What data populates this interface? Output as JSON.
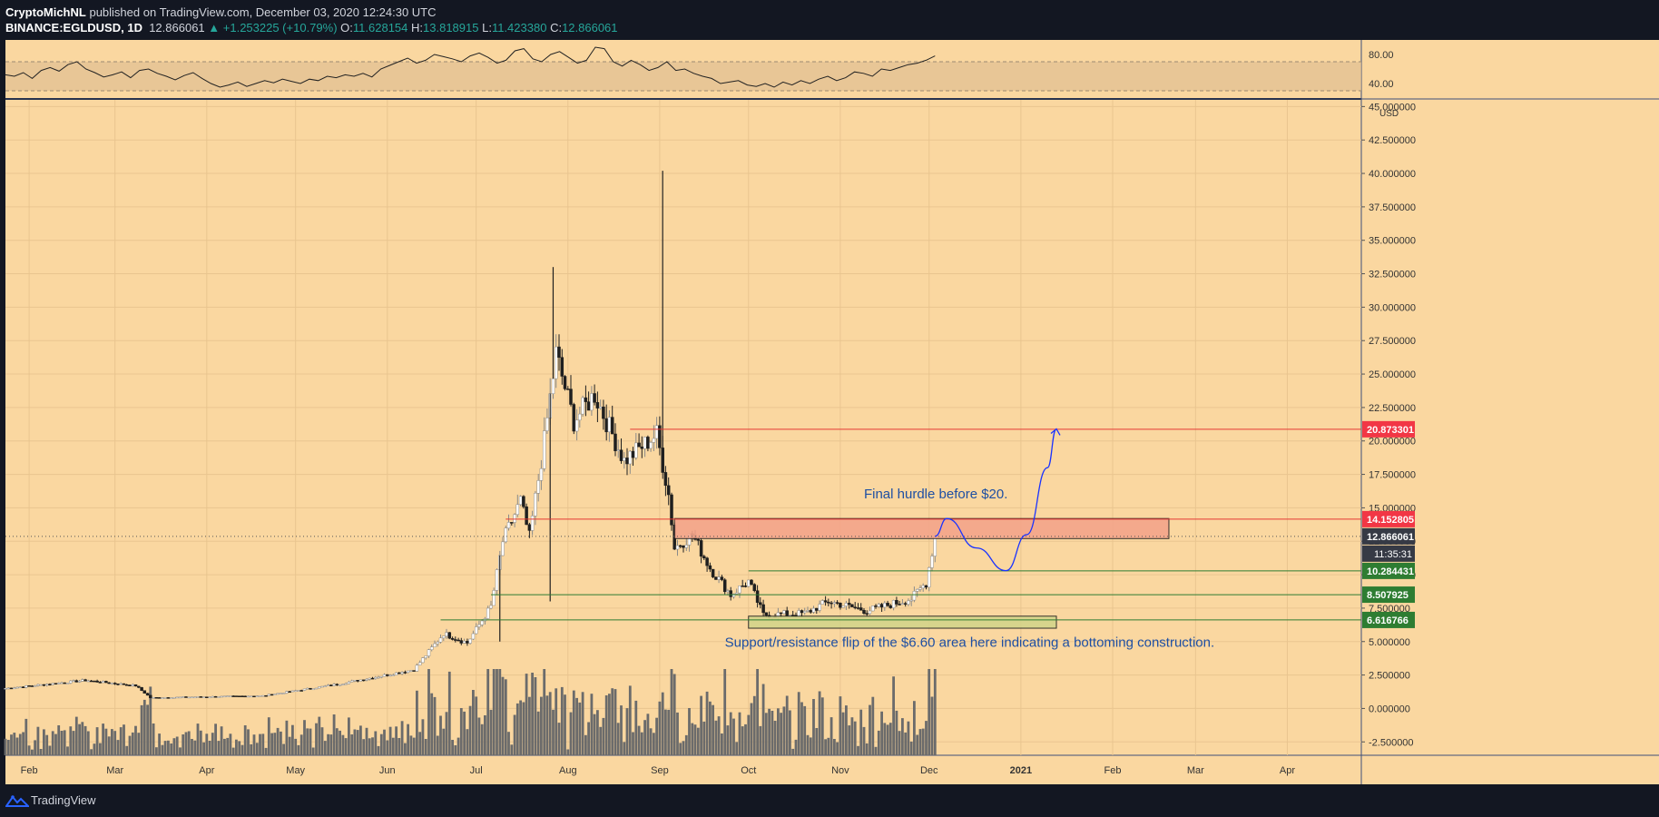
{
  "header": {
    "author": "CryptoMichNL",
    "published_text": "published on TradingView.com, December 03, 2020 12:24:30 UTC",
    "symbol": "BINANCE:EGLDUSD, 1D",
    "last": "12.866061",
    "change": "▲ +1.253225 (+10.79%)",
    "o_label": "O:",
    "o": "11.628154",
    "h_label": "H:",
    "h": "13.818915",
    "l_label": "L:",
    "l": "11.423380",
    "c_label": "C:",
    "c": "12.866061"
  },
  "footer": {
    "brand": "TradingView",
    "brand_icon": "tradingview-logo-icon"
  },
  "colors": {
    "background": "#fad7a0",
    "candle": "#1f1f1f",
    "grid": "#e9c58f",
    "resistance_line": "#e53935",
    "support_line": "#2e7d32",
    "annotation_text": "#1e4fa3",
    "arrow": "#1a33ff"
  },
  "chart_data": [
    {
      "type": "line",
      "name": "RSI pane",
      "y_ticks": [
        "80.00",
        "40.00"
      ],
      "ylim": [
        20,
        100
      ],
      "band": [
        30,
        70
      ],
      "x_range": [
        "2020-01-24",
        "2021-04-26"
      ],
      "values": [
        52,
        50,
        55,
        47,
        58,
        62,
        57,
        66,
        70,
        60,
        55,
        49,
        52,
        56,
        48,
        58,
        60,
        54,
        50,
        45,
        51,
        55,
        47,
        40,
        35,
        38,
        42,
        36,
        40,
        44,
        41,
        46,
        43,
        40,
        46,
        44,
        50,
        48,
        52,
        50,
        54,
        49,
        60,
        65,
        70,
        75,
        68,
        72,
        80,
        77,
        74,
        70,
        78,
        82,
        76,
        68,
        72,
        85,
        88,
        74,
        70,
        80,
        84,
        76,
        68,
        72,
        90,
        88,
        70,
        64,
        72,
        66,
        58,
        62,
        70,
        58,
        60,
        54,
        50,
        47,
        40,
        42,
        44,
        38,
        36,
        40,
        35,
        42,
        38,
        44,
        40,
        46,
        50,
        44,
        48,
        56,
        54,
        50,
        60,
        58,
        62,
        66,
        68,
        72,
        78
      ]
    },
    {
      "type": "candlestick",
      "name": "EGLDUSD 1D",
      "y_unit": "USD",
      "ylim": [
        -3.5,
        45.5
      ],
      "y_ticks": [
        "45.000000",
        "42.500000",
        "40.000000",
        "37.500000",
        "35.000000",
        "32.500000",
        "30.000000",
        "27.500000",
        "25.000000",
        "22.500000",
        "20.000000",
        "17.500000",
        "15.000000",
        "12.500000",
        "10.000000",
        "7.500000",
        "5.000000",
        "2.500000",
        "0.000000",
        "-2.500000"
      ],
      "x_range": [
        "2020-01-24",
        "2021-04-26"
      ],
      "x_ticks": [
        {
          "label": "Feb",
          "date": "2020-02-01",
          "bold": false
        },
        {
          "label": "Mar",
          "date": "2020-03-01",
          "bold": false
        },
        {
          "label": "Apr",
          "date": "2020-04-01",
          "bold": false
        },
        {
          "label": "May",
          "date": "2020-05-01",
          "bold": false
        },
        {
          "label": "Jun",
          "date": "2020-06-01",
          "bold": false
        },
        {
          "label": "Jul",
          "date": "2020-07-01",
          "bold": false
        },
        {
          "label": "Aug",
          "date": "2020-08-01",
          "bold": false
        },
        {
          "label": "Sep",
          "date": "2020-09-01",
          "bold": false
        },
        {
          "label": "Oct",
          "date": "2020-10-01",
          "bold": false
        },
        {
          "label": "Nov",
          "date": "2020-11-01",
          "bold": false
        },
        {
          "label": "Dec",
          "date": "2020-12-01",
          "bold": false
        },
        {
          "label": "2021",
          "date": "2021-01-01",
          "bold": true
        },
        {
          "label": "Feb",
          "date": "2021-02-01",
          "bold": false
        },
        {
          "label": "Mar",
          "date": "2021-03-01",
          "bold": false
        },
        {
          "label": "Apr",
          "date": "2021-04-01",
          "bold": false
        }
      ],
      "start_date": "2020-01-24",
      "close_path": [
        {
          "date": "2020-01-24",
          "close": 1.5
        },
        {
          "date": "2020-02-20",
          "close": 2.1
        },
        {
          "date": "2020-03-08",
          "close": 1.7
        },
        {
          "date": "2020-03-13",
          "close": 0.8
        },
        {
          "date": "2020-04-20",
          "close": 0.95
        },
        {
          "date": "2020-05-15",
          "close": 1.8
        },
        {
          "date": "2020-06-10",
          "close": 2.9
        },
        {
          "date": "2020-06-20",
          "close": 5.6
        },
        {
          "date": "2020-06-28",
          "close": 4.9
        },
        {
          "date": "2020-07-06",
          "close": 7.6
        },
        {
          "date": "2020-07-10",
          "close": 12.5
        },
        {
          "date": "2020-07-16",
          "close": 15.5
        },
        {
          "date": "2020-07-19",
          "close": 12.8
        },
        {
          "date": "2020-07-24",
          "close": 20.0
        },
        {
          "date": "2020-07-28",
          "close": 26.5
        },
        {
          "date": "2020-08-03",
          "close": 21.5
        },
        {
          "date": "2020-08-10",
          "close": 23.5
        },
        {
          "date": "2020-08-20",
          "close": 18.5
        },
        {
          "date": "2020-08-31",
          "close": 20.5
        },
        {
          "date": "2020-09-04",
          "close": 16.0
        },
        {
          "date": "2020-09-06",
          "close": 12.0
        },
        {
          "date": "2020-09-12",
          "close": 13.0
        },
        {
          "date": "2020-09-18",
          "close": 10.5
        },
        {
          "date": "2020-09-25",
          "close": 8.5
        },
        {
          "date": "2020-10-01",
          "close": 9.5
        },
        {
          "date": "2020-10-06",
          "close": 7.0
        },
        {
          "date": "2020-10-20",
          "close": 7.1
        },
        {
          "date": "2020-10-28",
          "close": 8.0
        },
        {
          "date": "2020-11-10",
          "close": 7.3
        },
        {
          "date": "2020-11-25",
          "close": 8.2
        },
        {
          "date": "2020-11-30",
          "close": 9.4
        },
        {
          "date": "2020-12-03",
          "close": 12.87
        }
      ],
      "spikes": [
        {
          "date": "2020-07-27",
          "high": 33.0
        },
        {
          "date": "2020-09-02",
          "high": 40.2
        },
        {
          "date": "2020-07-09",
          "low": 5.0
        },
        {
          "date": "2020-07-26",
          "low": 8.0
        }
      ],
      "horizontal_levels": [
        {
          "value": 20.873301,
          "label": "20.873301",
          "kind": "resistance",
          "from": "2020-08-22"
        },
        {
          "value": 14.152805,
          "label": "14.152805",
          "kind": "resistance",
          "from": "2020-07-11"
        },
        {
          "value": 12.866061,
          "label": "12.866061",
          "kind": "current-price",
          "from": "2020-01-24"
        },
        {
          "value": 10.284431,
          "label": "10.284431",
          "kind": "support",
          "from": "2020-10-01"
        },
        {
          "value": 8.507925,
          "label": "8.507925",
          "kind": "support",
          "from": "2020-07-06"
        },
        {
          "value": 6.616766,
          "label": "6.616766",
          "kind": "support",
          "from": "2020-06-19"
        }
      ],
      "countdown_label": "11:35:31",
      "zones": [
        {
          "name": "resistance-zone",
          "from": "2020-09-06",
          "to": "2021-02-20",
          "low": 12.7,
          "high": 14.2
        },
        {
          "name": "support-zone",
          "from": "2020-10-01",
          "to": "2021-01-13",
          "low": 6.0,
          "high": 6.9
        }
      ],
      "annotations": [
        {
          "text": "Final hurdle before $20.",
          "date": "2020-11-09",
          "value": 15.7
        },
        {
          "text": "Support/resistance flip of the $6.60 area here indicating a bottoming construction.",
          "date": "2020-09-23",
          "value": 4.6
        }
      ],
      "projection_path": [
        {
          "date": "2020-12-03",
          "value": 12.87
        },
        {
          "date": "2020-12-07",
          "value": 14.2
        },
        {
          "date": "2020-12-17",
          "value": 12.0
        },
        {
          "date": "2020-12-27",
          "value": 10.3
        },
        {
          "date": "2021-01-03",
          "value": 13.0
        },
        {
          "date": "2021-01-10",
          "value": 18.0
        },
        {
          "date": "2021-01-13",
          "value": 20.9
        }
      ]
    }
  ]
}
